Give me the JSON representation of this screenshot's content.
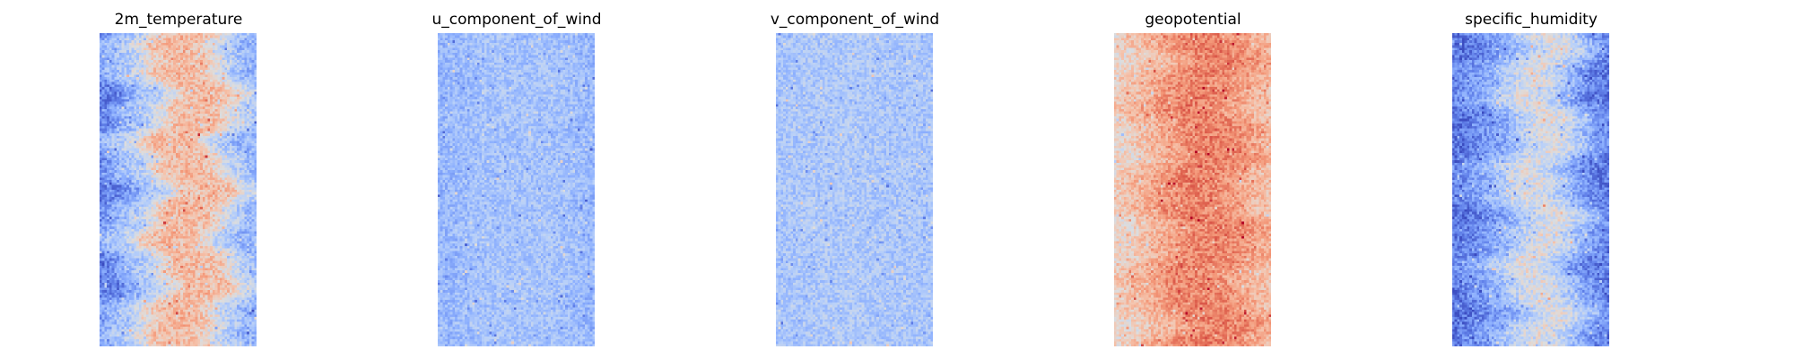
{
  "chart_data": [
    {
      "type": "heatmap",
      "title": "2m_temperature",
      "colormap": "coolwarm",
      "grid": {
        "cols": 64,
        "rows": 128
      },
      "axes_visible": false,
      "profile": [
        0.14,
        0.3,
        0.4,
        0.62,
        0.66,
        0.62,
        0.42,
        0.28
      ],
      "waviness": 0.09,
      "noise": 0.11,
      "seed": 11
    },
    {
      "type": "heatmap",
      "title": "u_component_of_wind",
      "colormap": "coolwarm",
      "grid": {
        "cols": 64,
        "rows": 128
      },
      "axes_visible": false,
      "profile": [
        0.28,
        0.3,
        0.32,
        0.33,
        0.32,
        0.33,
        0.31,
        0.28
      ],
      "waviness": 0.05,
      "noise": 0.09,
      "seed": 23
    },
    {
      "type": "heatmap",
      "title": "v_component_of_wind",
      "colormap": "coolwarm",
      "grid": {
        "cols": 64,
        "rows": 128
      },
      "axes_visible": false,
      "profile": [
        0.33,
        0.34,
        0.35,
        0.35,
        0.35,
        0.34,
        0.34,
        0.33
      ],
      "waviness": 0.05,
      "noise": 0.09,
      "seed": 37
    },
    {
      "type": "heatmap",
      "title": "geopotential",
      "colormap": "coolwarm",
      "grid": {
        "cols": 64,
        "rows": 128
      },
      "axes_visible": false,
      "profile": [
        0.55,
        0.63,
        0.7,
        0.78,
        0.8,
        0.78,
        0.72,
        0.64
      ],
      "waviness": 0.08,
      "noise": 0.1,
      "seed": 51
    },
    {
      "type": "heatmap",
      "title": "specific_humidity",
      "colormap": "coolwarm",
      "grid": {
        "cols": 64,
        "rows": 128
      },
      "axes_visible": false,
      "profile": [
        0.1,
        0.18,
        0.26,
        0.42,
        0.5,
        0.4,
        0.22,
        0.12
      ],
      "waviness": 0.08,
      "noise": 0.11,
      "seed": 73
    }
  ]
}
